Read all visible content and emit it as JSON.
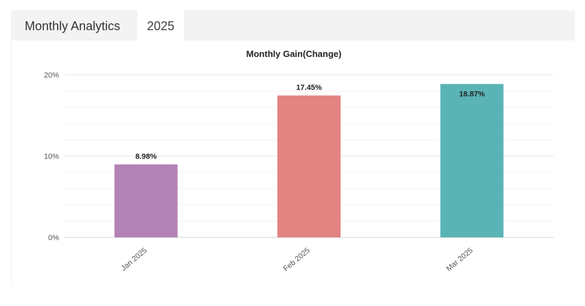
{
  "tabs": [
    {
      "label": "Monthly Analytics"
    },
    {
      "label": "2025"
    }
  ],
  "chart_data": {
    "type": "bar",
    "title": "Monthly Gain(Change)",
    "xlabel": "",
    "ylabel": "",
    "categories": [
      "Jan 2025",
      "Feb 2025",
      "Mar 2025"
    ],
    "values": [
      8.98,
      17.45,
      18.87
    ],
    "data_labels": [
      "8.98%",
      "17.45%",
      "18.87%"
    ],
    "colors": [
      "#b383b5",
      "#e28482",
      "#5ab4b5"
    ],
    "ylim": [
      0,
      20
    ],
    "yticks": [
      0,
      10,
      20
    ],
    "ytick_labels": [
      "0%",
      "10%",
      "20%"
    ],
    "grid": true,
    "legend": "none"
  }
}
